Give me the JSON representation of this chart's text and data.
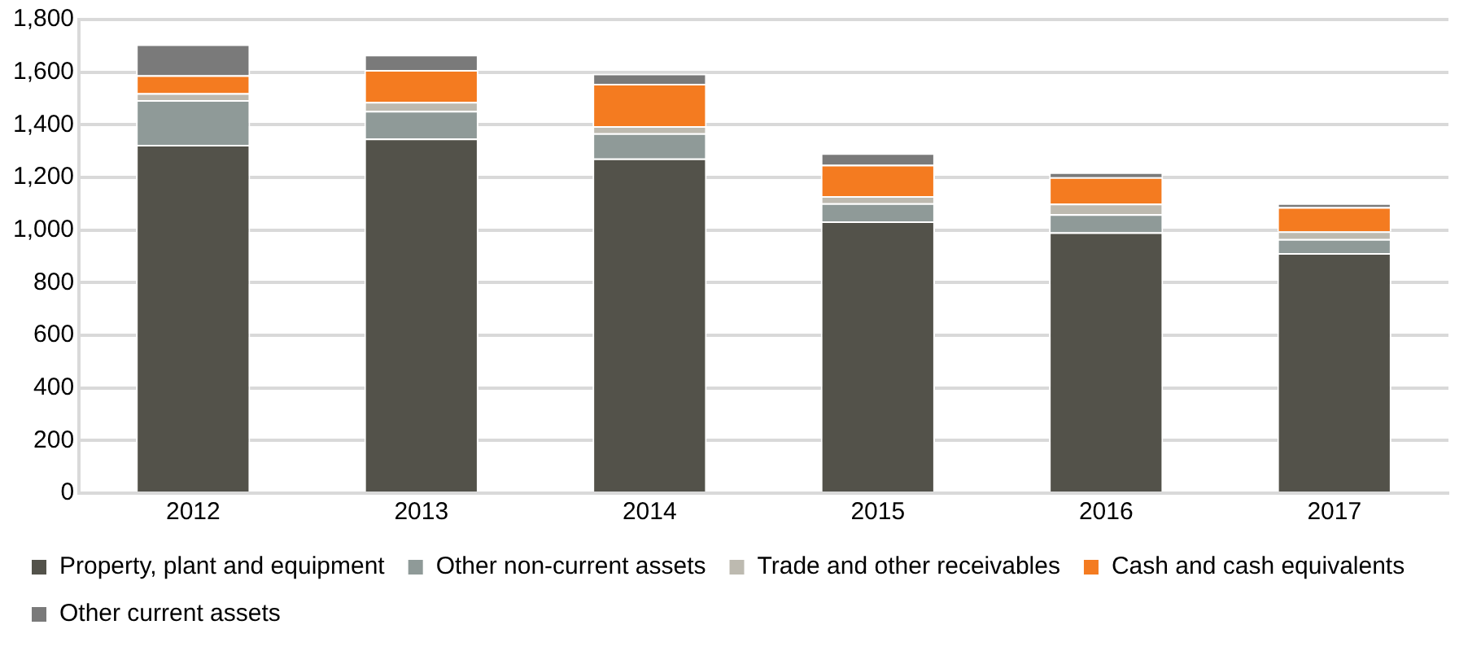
{
  "chart_data": {
    "type": "bar",
    "stacked": true,
    "categories": [
      "2012",
      "2013",
      "2014",
      "2015",
      "2016",
      "2017"
    ],
    "series": [
      {
        "name": "Property, plant and equipment",
        "color": "#53524a",
        "values": [
          1324,
          1348,
          1272,
          1033,
          991,
          912
        ]
      },
      {
        "name": "Other non-current assets",
        "color": "#8f9a98",
        "values": [
          170,
          105,
          96,
          69,
          69,
          54
        ]
      },
      {
        "name": "Trade and other receivables",
        "color": "#bdbab0",
        "values": [
          26,
          34,
          27,
          27,
          40,
          29
        ]
      },
      {
        "name": "Cash and cash equivalents",
        "color": "#f47b20",
        "values": [
          68,
          121,
          161,
          119,
          101,
          92
        ]
      },
      {
        "name": "Other current assets",
        "color": "#7a7a7a",
        "values": [
          118,
          58,
          38,
          44,
          18,
          15
        ]
      }
    ],
    "ylim": [
      0,
      1800
    ],
    "yticks": [
      0,
      200,
      400,
      600,
      800,
      {
        "value": 1000,
        "label": "1,000"
      },
      {
        "value": 1200,
        "label": "1,200"
      },
      {
        "value": 1400,
        "label": "1,400"
      },
      {
        "value": 1600,
        "label": "1,600"
      },
      {
        "value": 1800,
        "label": "1,800"
      }
    ],
    "grid": "y",
    "legend": "bottom"
  }
}
